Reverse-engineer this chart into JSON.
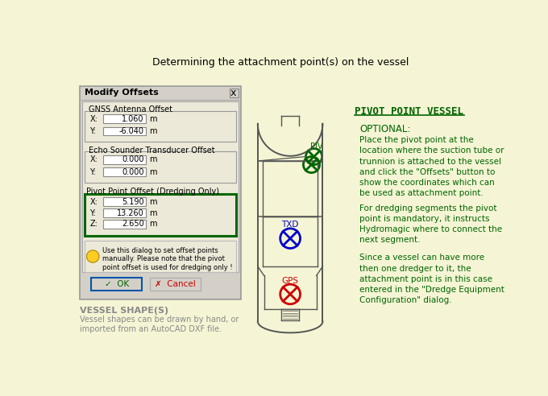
{
  "title": "Determining the attachment point(s) on the vessel",
  "bg_color": "#f5f5d5",
  "dialog_title": "Modify Offsets",
  "gnss_label": "GNSS Antenna Offset",
  "gnss_x_val": "1.060",
  "gnss_y_val": "-6.040",
  "echo_label": "Echo Sounder Transducer Offset",
  "echo_x_val": "0.000",
  "echo_y_val": "0.000",
  "pivot_label": "Pivot Point Offset (Dredging Only)",
  "pivot_x_val": "5.190",
  "pivot_y_val": "13.260",
  "pivot_z_val": "2.650",
  "hint_text": "Use this dialog to set offset points\nmanually. Please note that the pivot\npoint offset is used for dredging only !",
  "vessel_shape_title": "VESSEL SHAPE(S)",
  "vessel_shape_text": "Vessel shapes can be drawn by hand, or\nimported from an AutoCAD DXF file.",
  "pivot_header": "PIVOT POINT VESSEL",
  "optional_label": "OPTIONAL:",
  "para1": "Place the pivot point at the\nlocation where the suction tube or\ntrunnion is attached to the vessel\nand click the \"Offsets\" button to\nshow the coordinates which can\nbe used as attachment point.",
  "para2": "For dredging segments the pivot\npoint is mandatory, it instructs\nHydromagic where to connect the\nnext segment.",
  "para3": "Since a vessel can have more\nthen one dredger to it, the\nattachment point is in this case\nentered in the \"Dredge Equipment\nConfiguration\" dialog.",
  "green_color": "#006400",
  "blue_color": "#0000cc",
  "red_color": "#cc0000"
}
